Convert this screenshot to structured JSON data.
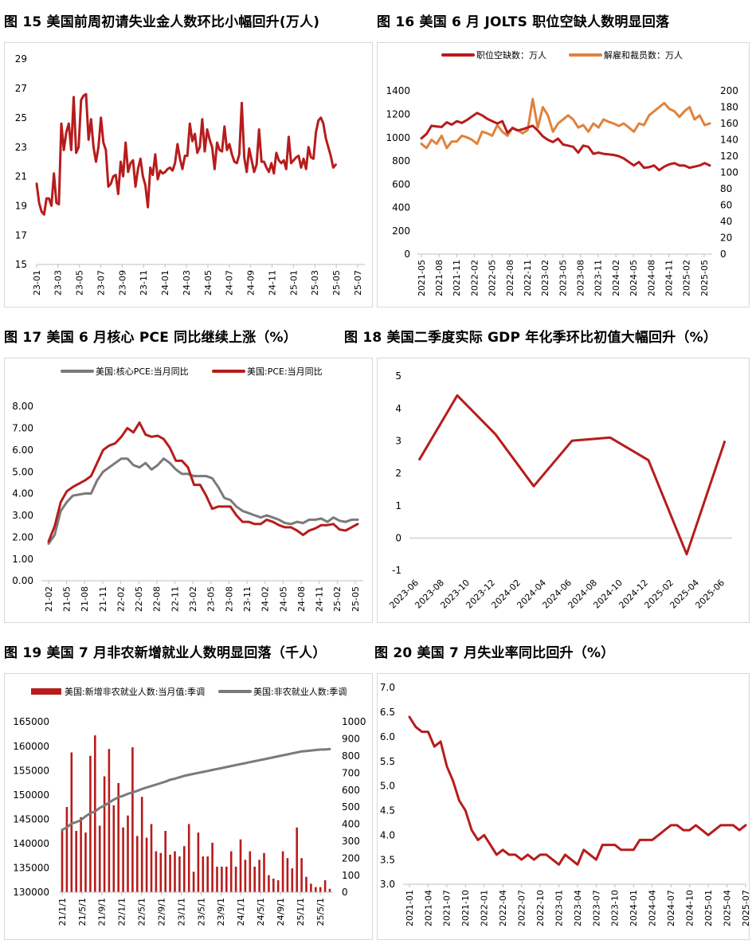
{
  "titles": {
    "fig15": "图 15 美国前周初请失业金人数环比小幅回升(万人)",
    "fig16": "图 16 美国 6 月 JOLTS 职位空缺人数明显回落",
    "fig17": "图 17 美国 6 月核心 PCE 同比继续上涨（%）",
    "fig18": "图 18 美国二季度实际 GDP 年化季环比初值大幅回升（%）",
    "fig19": "图 19 美国 7 月非农新增就业人数明显回落（千人）",
    "fig20": "图 20 美国 7 月失业率同比回升（%）"
  },
  "colors": {
    "red": "#b71c1c",
    "orange": "#e0823c",
    "gray": "#7a7a7a"
  },
  "chart_data": [
    {
      "id": "fig15",
      "type": "line",
      "x_ticks": [
        "23-01",
        "23-03",
        "23-05",
        "23-07",
        "23-09",
        "23-11",
        "24-01",
        "24-03",
        "24-05",
        "24-07",
        "24-09",
        "24-11",
        "25-01",
        "25-03",
        "25-05",
        "25-07"
      ],
      "ylim": [
        15,
        29
      ],
      "y_ticks": [
        15,
        17,
        19,
        21,
        23,
        25,
        27,
        29
      ],
      "series": [
        {
          "values": [
            20.5,
            19.2,
            18.6,
            18.4,
            19.5,
            19.5,
            19.0,
            21.2,
            19.2,
            19.1,
            24.6,
            22.8,
            24.0,
            24.6,
            22.8,
            26.4,
            22.6,
            23.0,
            26.2,
            26.5,
            26.6,
            23.5,
            24.9,
            23.0,
            22.0,
            23.0,
            25.0,
            23.3,
            22.8,
            20.3,
            20.5,
            21.0,
            21.1,
            19.8,
            22.0,
            21.0,
            23.3,
            21.3,
            21.9,
            22.1,
            20.3,
            21.5,
            22.2,
            21.0,
            20.4,
            18.9,
            21.6,
            21.1,
            22.5,
            20.8,
            21.4,
            21.2,
            21.3,
            21.5,
            21.6,
            21.4,
            21.9,
            23.2,
            22.2,
            21.5,
            22.4,
            22.4,
            24.6,
            23.4,
            23.9,
            22.6,
            23.0,
            24.9,
            22.7,
            24.2,
            23.5,
            23.0,
            21.5,
            23.3,
            22.8,
            22.7,
            24.4,
            22.8,
            23.2,
            22.5,
            22.0,
            21.9,
            22.5,
            26.0,
            22.3,
            21.3,
            22.9,
            22.1,
            21.3,
            21.8,
            24.2,
            22.0,
            22.0,
            21.6,
            21.3,
            21.9,
            21.2,
            22.6,
            22.1,
            21.9,
            22.1,
            21.5,
            23.7,
            21.9,
            22.1,
            22.3,
            22.4,
            21.6,
            22.2,
            21.5,
            23.0,
            22.3,
            22.2,
            24.0,
            24.8,
            25.0,
            24.6,
            23.6,
            23.0,
            22.4,
            21.6,
            21.8
          ]
        }
      ]
    },
    {
      "id": "fig16",
      "type": "line",
      "x_ticks": [
        "2021-05",
        "2021-08",
        "2021-11",
        "2022-02",
        "2022-05",
        "2022-08",
        "2022-11",
        "2023-02",
        "2023-05",
        "2023-08",
        "2023-11",
        "2024-02",
        "2024-05",
        "2024-08",
        "2024-11",
        "2025-02",
        "2025-05"
      ],
      "ylim_left": [
        0,
        1400
      ],
      "y_ticks_left": [
        0,
        200,
        400,
        600,
        800,
        1000,
        1200,
        1400
      ],
      "ylim_right": [
        0,
        200
      ],
      "y_ticks_right": [
        0,
        20,
        40,
        60,
        80,
        100,
        120,
        140,
        160,
        180,
        200
      ],
      "legend_position": "top",
      "series": [
        {
          "name": "职位空缺数：万人",
          "axis": "left",
          "values": [
            992,
            1030,
            1100,
            1095,
            1090,
            1130,
            1110,
            1140,
            1125,
            1150,
            1180,
            1210,
            1190,
            1160,
            1140,
            1120,
            1140,
            1040,
            1080,
            1060,
            1070,
            1085,
            1100,
            1060,
            1010,
            980,
            960,
            990,
            940,
            930,
            920,
            870,
            930,
            920,
            860,
            870,
            860,
            855,
            850,
            840,
            820,
            790,
            760,
            790,
            740,
            745,
            760,
            720,
            750,
            770,
            780,
            760,
            760,
            740,
            750,
            760,
            780,
            760
          ]
        },
        {
          "name": "解雇和裁员数：万人",
          "axis": "right",
          "values": [
            135,
            130,
            140,
            135,
            145,
            130,
            138,
            138,
            145,
            143,
            140,
            135,
            150,
            148,
            145,
            158,
            150,
            145,
            155,
            152,
            148,
            152,
            190,
            155,
            180,
            170,
            150,
            160,
            165,
            170,
            165,
            155,
            158,
            150,
            160,
            155,
            165,
            162,
            160,
            157,
            160,
            155,
            150,
            160,
            158,
            170,
            175,
            180,
            185,
            178,
            175,
            168,
            175,
            180,
            165,
            170,
            158,
            160
          ]
        }
      ]
    },
    {
      "id": "fig17",
      "type": "line",
      "x_ticks": [
        "21-02",
        "21-05",
        "21-08",
        "21-11",
        "22-02",
        "22-05",
        "22-08",
        "22-11",
        "23-02",
        "23-05",
        "23-08",
        "23-11",
        "24-02",
        "24-05",
        "24-08",
        "24-11",
        "25-02",
        "25-05"
      ],
      "ylim": [
        0,
        8
      ],
      "y_ticks": [
        "0.00",
        "1.00",
        "2.00",
        "3.00",
        "4.00",
        "5.00",
        "6.00",
        "7.00",
        "8.00"
      ],
      "legend_position": "top",
      "series": [
        {
          "name": "美国:核心PCE:当月同比",
          "values": [
            1.7,
            2.1,
            3.2,
            3.6,
            3.9,
            3.95,
            4.0,
            4.0,
            4.6,
            5.0,
            5.2,
            5.4,
            5.6,
            5.6,
            5.3,
            5.2,
            5.4,
            5.1,
            5.3,
            5.6,
            5.4,
            5.1,
            4.9,
            4.9,
            4.8,
            4.8,
            4.8,
            4.7,
            4.3,
            3.8,
            3.7,
            3.4,
            3.2,
            3.1,
            3.0,
            2.9,
            3.0,
            2.9,
            2.8,
            2.65,
            2.6,
            2.7,
            2.65,
            2.8,
            2.8,
            2.85,
            2.7,
            2.9,
            2.75,
            2.7,
            2.8,
            2.8
          ]
        },
        {
          "name": "美国:PCE:当月同比",
          "values": [
            1.8,
            2.5,
            3.6,
            4.1,
            4.3,
            4.45,
            4.6,
            4.8,
            5.4,
            6.0,
            6.2,
            6.3,
            6.6,
            7.0,
            6.8,
            7.25,
            6.7,
            6.6,
            6.65,
            6.5,
            6.1,
            5.5,
            5.5,
            5.2,
            4.4,
            4.4,
            3.9,
            3.3,
            3.4,
            3.4,
            3.4,
            3.0,
            2.7,
            2.7,
            2.6,
            2.6,
            2.8,
            2.7,
            2.55,
            2.45,
            2.45,
            2.3,
            2.1,
            2.3,
            2.4,
            2.55,
            2.55,
            2.6,
            2.35,
            2.3,
            2.45,
            2.6
          ]
        }
      ]
    },
    {
      "id": "fig18",
      "type": "line",
      "x_ticks": [
        "2023-06",
        "2023-08",
        "2023-10",
        "2023-12",
        "2024-02",
        "2024-04",
        "2024-06",
        "2024-08",
        "2024-10",
        "2024-12",
        "2025-02",
        "2025-04",
        "2025-06"
      ],
      "ylim": [
        -1,
        5
      ],
      "y_ticks": [
        -1,
        0,
        1,
        2,
        3,
        4,
        5
      ],
      "series": [
        {
          "x": [
            "2023-06",
            "2023-09",
            "2023-12",
            "2024-03",
            "2024-06",
            "2024-09",
            "2024-12",
            "2025-03",
            "2025-06"
          ],
          "values": [
            2.4,
            4.4,
            3.2,
            1.6,
            3.0,
            3.1,
            2.4,
            -0.5,
            3.0
          ]
        }
      ]
    },
    {
      "id": "fig19",
      "type": "bar",
      "x_ticks": [
        "21/1/1",
        "21/5/1",
        "21/9/1",
        "22/1/1",
        "22/5/1",
        "22/9/1",
        "23/1/1",
        "23/5/1",
        "23/9/1",
        "24/1/1",
        "24/5/1",
        "24/9/1",
        "25/1/1",
        "25/5/1"
      ],
      "ylim_left": [
        130000,
        165000
      ],
      "y_ticks_left": [
        130000,
        135000,
        140000,
        145000,
        150000,
        155000,
        160000,
        165000
      ],
      "ylim_right": [
        0,
        1000
      ],
      "y_ticks_right": [
        0,
        100,
        200,
        300,
        400,
        500,
        600,
        700,
        800,
        900,
        1000
      ],
      "legend_position": "top",
      "series": [
        {
          "name": "美国:新增非农就业人数:当月值:季调",
          "type": "bar",
          "axis": "right",
          "values": [
            370,
            500,
            820,
            360,
            440,
            350,
            800,
            920,
            390,
            680,
            840,
            510,
            640,
            380,
            450,
            850,
            330,
            560,
            320,
            400,
            240,
            230,
            360,
            220,
            240,
            210,
            270,
            400,
            120,
            350,
            210,
            210,
            290,
            150,
            150,
            150,
            240,
            150,
            310,
            190,
            240,
            150,
            190,
            230,
            100,
            80,
            70,
            240,
            200,
            140,
            380,
            200,
            90,
            50,
            30,
            30,
            70,
            20
          ]
        },
        {
          "name": "美国:非农就业人数:季调",
          "type": "line",
          "axis": "left",
          "values": [
            142800,
            143300,
            144100,
            144400,
            144800,
            145600,
            146200,
            146600,
            147300,
            147800,
            148400,
            149000,
            149500,
            149800,
            150200,
            150500,
            150800,
            151200,
            151500,
            151800,
            152100,
            152400,
            152700,
            153100,
            153300,
            153600,
            153900,
            154100,
            154300,
            154500,
            154700,
            154900,
            155100,
            155300,
            155500,
            155700,
            155900,
            156100,
            156300,
            156500,
            156700,
            156900,
            157100,
            157300,
            157500,
            157700,
            157900,
            158100,
            158300,
            158500,
            158700,
            158900,
            159000,
            159100,
            159200,
            159300,
            159300,
            159400
          ]
        }
      ]
    },
    {
      "id": "fig20",
      "type": "line",
      "x_ticks": [
        "2021-01",
        "2021-04",
        "2021-07",
        "2021-10",
        "2022-01",
        "2022-04",
        "2022-07",
        "2022-10",
        "2023-01",
        "2023-04",
        "2023-07",
        "2023-10",
        "2024-01",
        "2024-04",
        "2024-07",
        "2024-10",
        "2025-01",
        "2025-04",
        "2025-07"
      ],
      "ylim": [
        3.0,
        7.0
      ],
      "y_ticks": [
        "3.0",
        "3.5",
        "4.0",
        "4.5",
        "5.0",
        "5.5",
        "6.0",
        "6.5",
        "7.0"
      ],
      "series": [
        {
          "values": [
            6.4,
            6.2,
            6.1,
            6.1,
            5.8,
            5.9,
            5.4,
            5.1,
            4.7,
            4.5,
            4.1,
            3.9,
            4.0,
            3.8,
            3.6,
            3.7,
            3.6,
            3.6,
            3.5,
            3.6,
            3.5,
            3.6,
            3.6,
            3.5,
            3.4,
            3.6,
            3.5,
            3.4,
            3.7,
            3.6,
            3.5,
            3.8,
            3.8,
            3.8,
            3.7,
            3.7,
            3.7,
            3.9,
            3.9,
            3.9,
            4.0,
            4.1,
            4.2,
            4.2,
            4.1,
            4.1,
            4.2,
            4.1,
            4.0,
            4.1,
            4.2,
            4.2,
            4.2,
            4.1,
            4.2
          ]
        }
      ]
    }
  ]
}
